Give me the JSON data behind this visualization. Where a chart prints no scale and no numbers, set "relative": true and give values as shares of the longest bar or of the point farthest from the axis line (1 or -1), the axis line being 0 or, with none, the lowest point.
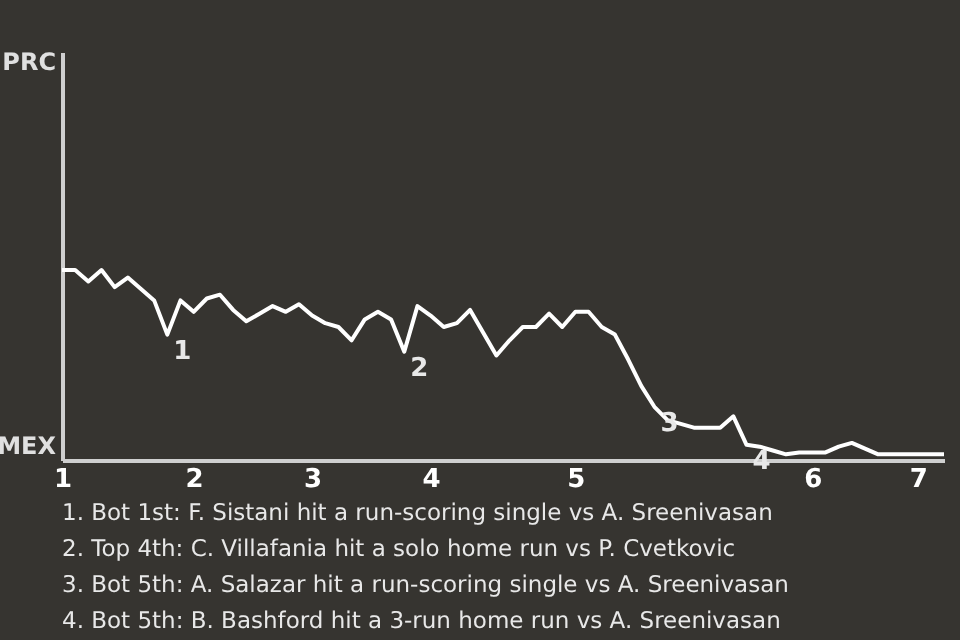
{
  "chart_data": {
    "type": "line",
    "relative": true,
    "categories": [
      "1",
      null,
      null,
      null,
      null,
      null,
      null,
      null,
      null,
      null,
      "2",
      null,
      null,
      null,
      null,
      null,
      null,
      null,
      null,
      "3",
      null,
      null,
      null,
      null,
      null,
      null,
      null,
      null,
      "4",
      null,
      null,
      null,
      null,
      null,
      null,
      null,
      null,
      null,
      null,
      "5",
      null,
      null,
      null,
      null,
      null,
      null,
      null,
      null,
      null,
      null,
      null,
      null,
      null,
      null,
      null,
      null,
      null,
      "6",
      null,
      null,
      null,
      null,
      null,
      null,
      null,
      "7",
      null,
      null
    ],
    "series": [
      {
        "color": "#ffffff",
        "values": [
          1,
          1,
          0.94,
          1,
          0.91,
          0.96,
          0.9,
          0.84,
          0.66,
          0.84,
          0.78,
          0.85,
          0.87,
          0.79,
          0.73,
          0.77,
          0.81,
          0.78,
          0.82,
          0.76,
          0.72,
          0.7,
          0.63,
          0.74,
          0.78,
          0.74,
          0.57,
          0.81,
          0.76,
          0.7,
          0.72,
          0.79,
          0.67,
          0.55,
          0.63,
          0.7,
          0.7,
          0.77,
          0.7,
          0.78,
          0.78,
          0.7,
          0.66,
          0.53,
          0.39,
          0.28,
          0.21,
          0.19,
          0.17,
          0.17,
          0.17,
          0.23,
          0.08,
          0.07,
          0.05,
          0.03,
          0.04,
          0.04,
          0.04,
          0.07,
          0.09,
          0.06,
          0.03,
          0.03,
          0.03,
          0.03,
          0.03,
          0.03
        ]
      }
    ],
    "value_labels": [
      null,
      null,
      null,
      null,
      null,
      null,
      null,
      null,
      "1",
      null,
      null,
      null,
      null,
      null,
      null,
      null,
      null,
      null,
      null,
      null,
      null,
      null,
      null,
      null,
      null,
      null,
      "2",
      null,
      null,
      null,
      null,
      null,
      null,
      null,
      null,
      null,
      null,
      null,
      null,
      null,
      null,
      null,
      null,
      null,
      null,
      "3",
      null,
      null,
      null,
      null,
      null,
      null,
      "4",
      null,
      null,
      null,
      null,
      null,
      null,
      null,
      null,
      null,
      null,
      null,
      null,
      null,
      null,
      null
    ],
    "legend": false,
    "marker": "none",
    "line_style": "solid",
    "annotations": [
      "PRC",
      "MEX",
      "1. Bot 1st: F. Sistani hit a run-scoring single vs A. Sreenivasan",
      "2. Top 4th: C. Villafania hit a solo home run vs P. Cvetkovic",
      "3. Bot 5th: A. Salazar hit a run-scoring single vs A. Sreenivasan",
      "4. Bot 5th: B. Bashford hit a 3-run home run vs A. Sreenivasan"
    ]
  }
}
